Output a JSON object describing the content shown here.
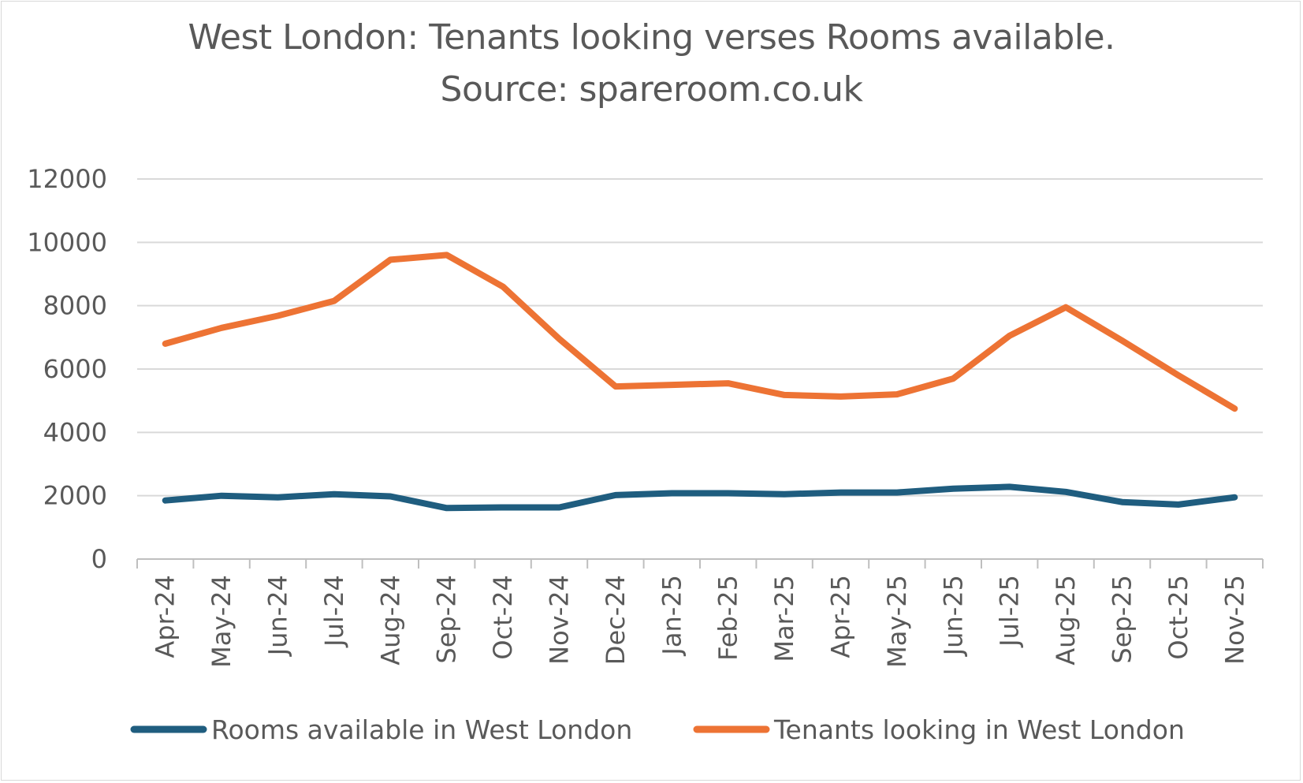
{
  "chart_data": {
    "type": "line",
    "title_line1": "West London: Tenants looking verses Rooms available.",
    "title_line2": "Source: spareroom.co.uk",
    "categories": [
      "Apr-24",
      "May-24",
      "Jun-24",
      "Jul-24",
      "Aug-24",
      "Sep-24",
      "Oct-24",
      "Nov-24",
      "Dec-24",
      "Jan-25",
      "Feb-25",
      "Mar-25",
      "Apr-25",
      "May-25",
      "Jun-25",
      "Jul-25",
      "Aug-25",
      "Sep-25",
      "Oct-25",
      "Nov-25"
    ],
    "ylim": [
      0,
      12000
    ],
    "yticks": [
      0,
      2000,
      4000,
      6000,
      8000,
      10000,
      12000
    ],
    "grid": true,
    "legend_position": "bottom",
    "series": [
      {
        "name": "Rooms available in West London",
        "color": "#1f5d7f",
        "values": [
          1850,
          2000,
          1950,
          2050,
          1980,
          1610,
          1630,
          1630,
          2020,
          2080,
          2080,
          2050,
          2100,
          2100,
          2220,
          2280,
          2120,
          1800,
          1720,
          1950
        ]
      },
      {
        "name": "Tenants looking in West London",
        "color": "#ed7334",
        "values": [
          6800,
          7300,
          7680,
          8150,
          9450,
          9600,
          8600,
          6950,
          5450,
          5500,
          5550,
          5180,
          5130,
          5200,
          5700,
          7050,
          7950,
          6900,
          5800,
          4750
        ]
      }
    ]
  }
}
